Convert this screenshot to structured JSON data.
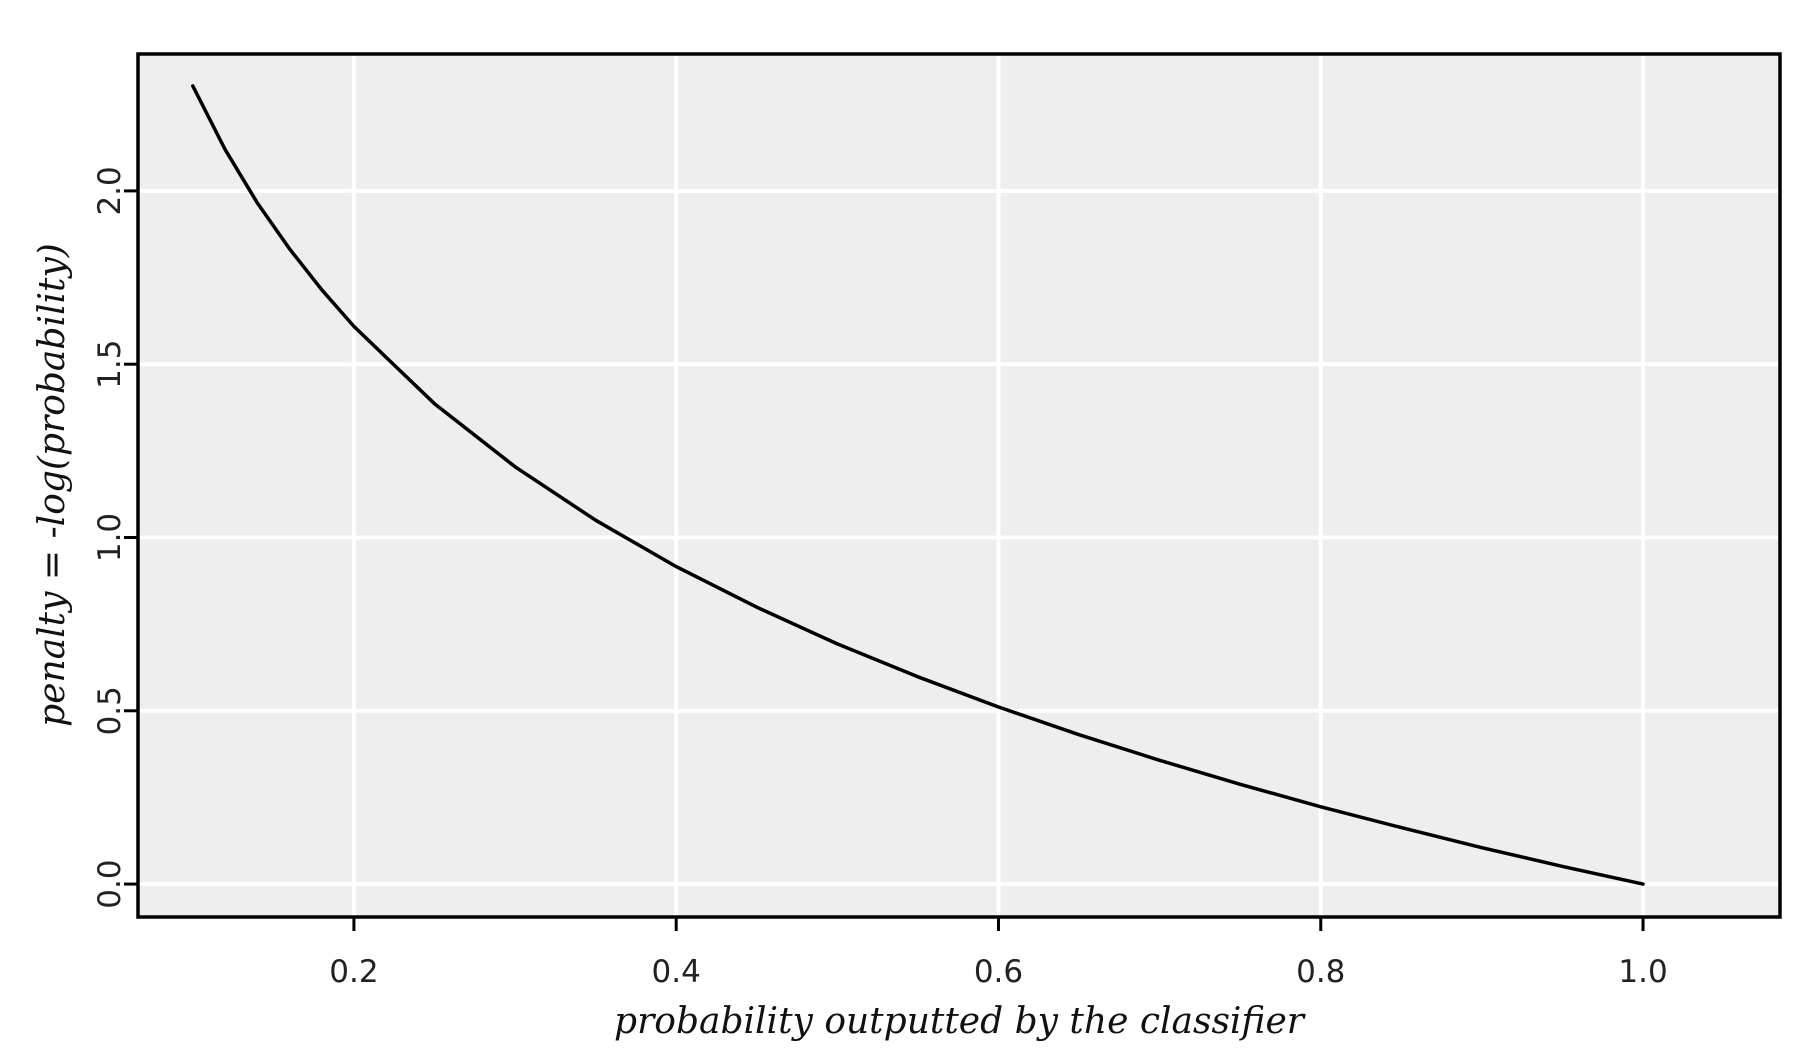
{
  "chart_data": {
    "type": "line",
    "title": "",
    "xlabel": "probability outputted by the classifier",
    "ylabel": "penalty = -log(probability)",
    "xlim": [
      0.066,
      1.085
    ],
    "ylim": [
      -0.095,
      2.395
    ],
    "x_ticks": [
      0.2,
      0.4,
      0.6,
      0.8,
      1.0
    ],
    "x_tick_labels": [
      "0.2",
      "0.4",
      "0.6",
      "0.8",
      "1.0"
    ],
    "y_ticks": [
      0.0,
      0.5,
      1.0,
      1.5,
      2.0
    ],
    "y_tick_labels": [
      "0.0",
      "0.5",
      "1.0",
      "1.5",
      "2.0"
    ],
    "grid": true,
    "legend": "none",
    "series": [
      {
        "x": [
          0.1,
          0.12,
          0.14,
          0.16,
          0.18,
          0.2,
          0.25,
          0.3,
          0.35,
          0.4,
          0.45,
          0.5,
          0.55,
          0.6,
          0.65,
          0.7,
          0.75,
          0.8,
          0.85,
          0.9,
          0.95,
          1.0
        ],
        "y": [
          2.303,
          2.12,
          1.966,
          1.833,
          1.715,
          1.609,
          1.386,
          1.204,
          1.05,
          0.916,
          0.799,
          0.693,
          0.598,
          0.511,
          0.431,
          0.357,
          0.288,
          0.223,
          0.163,
          0.105,
          0.051,
          0.0
        ]
      }
    ],
    "colors": {
      "panel": "#eeeeee",
      "grid": "#ffffff",
      "line": "#000000",
      "frame": "#000000"
    }
  }
}
